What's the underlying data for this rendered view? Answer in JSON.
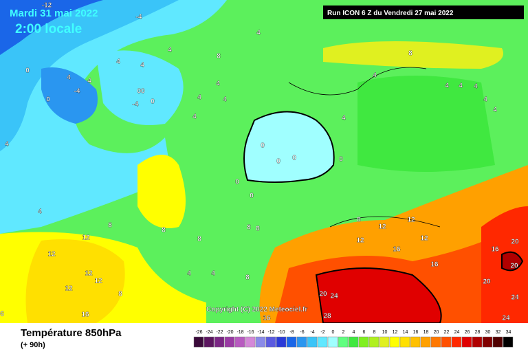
{
  "header": {
    "date": "Mardi 31 mai 2022",
    "time": "2:00 locale",
    "run": "Run ICON 6 Z du Vendredi 27 mai 2022",
    "copyright": "Copyright (C) 2022 Meteociel.fr"
  },
  "legend": {
    "title": "Température 850hPa",
    "subtitle": "(+ 90h)",
    "ticks": [
      -26,
      -24,
      -22,
      -20,
      -18,
      -16,
      -14,
      -12,
      -10,
      -8,
      -6,
      -4,
      -2,
      0,
      2,
      4,
      6,
      8,
      10,
      12,
      14,
      16,
      18,
      20,
      22,
      24,
      26,
      28,
      30,
      32,
      34
    ],
    "colors": [
      "#3a0a3a",
      "#5c1660",
      "#7a2684",
      "#9a3aa4",
      "#b85ac0",
      "#d488d8",
      "#8a8ae8",
      "#5a5ae0",
      "#2a3ad8",
      "#1a66e8",
      "#2a96f0",
      "#3ac4f8",
      "#60e8ff",
      "#a0ffff",
      "#60ff80",
      "#40e840",
      "#80f020",
      "#b0f020",
      "#e0f020",
      "#ffff00",
      "#ffe000",
      "#ffc000",
      "#ffa000",
      "#ff7800",
      "#ff5000",
      "#ff2800",
      "#e00000",
      "#b00000",
      "#800000",
      "#500000",
      "#000000"
    ]
  },
  "contour_labels": [
    "-12",
    "-4",
    "4",
    "4",
    "8",
    "4",
    "4",
    "0",
    "4",
    "-4",
    "4",
    "00",
    "0",
    "-4",
    "0",
    "4",
    "4",
    "4",
    "8",
    "4",
    "4",
    "4",
    "4",
    "4",
    "4",
    "4",
    "4",
    "0",
    "0",
    "0",
    "0",
    "0",
    "0",
    "4",
    "4",
    "8",
    "8",
    "8",
    "8",
    "8",
    "12",
    "12",
    "4",
    "4",
    "8",
    "12",
    "12",
    "12",
    "8",
    "16",
    "6",
    "8",
    "12",
    "12",
    "12",
    "12",
    "16",
    "16",
    "16",
    "20",
    "20",
    "20",
    "20",
    "24",
    "24",
    "24",
    "28",
    "16"
  ]
}
